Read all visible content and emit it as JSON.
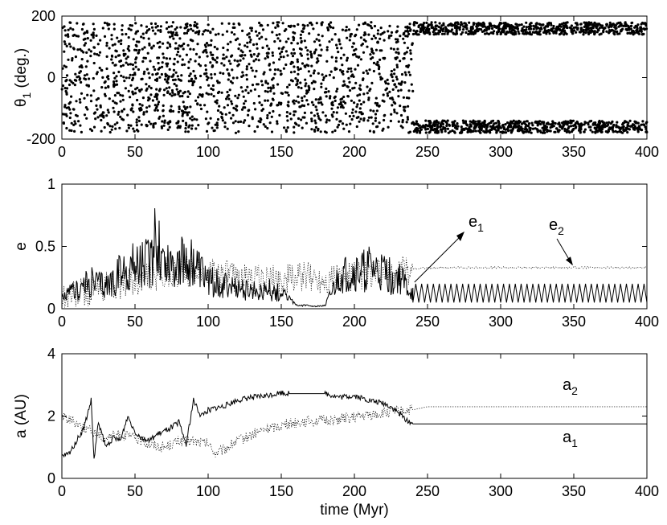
{
  "chart_data": [
    {
      "type": "scatter",
      "ylabel": "θ",
      "ylabel_subscript": "1",
      "ylabel_unit": "(deg.)",
      "xlim": [
        0,
        400
      ],
      "ylim": [
        -200,
        200
      ],
      "xticks": [
        0,
        50,
        100,
        150,
        200,
        250,
        300,
        350,
        400
      ],
      "yticks": [
        -200,
        0,
        200
      ],
      "series": [
        {
          "segments": [
            {
              "x_range": [
                0,
                240
              ],
              "y_range": [
                -180,
                180
              ],
              "distribution": "uniform circulation"
            },
            {
              "x_range": [
                240,
                400
              ],
              "y_range": [
                140,
                180
              ],
              "distribution": "libration band"
            },
            {
              "x_range": [
                240,
                400
              ],
              "y_range": [
                -180,
                -140
              ],
              "distribution": "libration band"
            }
          ]
        }
      ]
    },
    {
      "type": "line",
      "ylabel": "e",
      "xlim": [
        0,
        400
      ],
      "ylim": [
        0,
        1
      ],
      "xticks": [
        0,
        50,
        100,
        150,
        200,
        250,
        300,
        350,
        400
      ],
      "yticks": [
        0,
        0.5,
        1
      ],
      "series": [
        {
          "name": "e1",
          "style": "solid",
          "x": [
            0,
            10,
            20,
            30,
            40,
            50,
            60,
            65,
            70,
            80,
            90,
            100,
            110,
            120,
            130,
            140,
            150,
            160,
            170,
            180,
            190,
            200,
            210,
            220,
            230,
            240
          ],
          "y": [
            0.12,
            0.25,
            0.35,
            0.3,
            0.45,
            0.55,
            0.6,
            0.92,
            0.6,
            0.62,
            0.55,
            0.35,
            0.3,
            0.25,
            0.22,
            0.25,
            0.2,
            0.04,
            0.03,
            0.03,
            0.4,
            0.45,
            0.5,
            0.45,
            0.4,
            0.18
          ],
          "oscillation_after": {
            "x_range": [
              240,
              400
            ],
            "min": 0.05,
            "max": 0.2,
            "period": 4
          }
        },
        {
          "name": "e2",
          "style": "dotted",
          "x": [
            0,
            20,
            40,
            60,
            80,
            100,
            120,
            140,
            150,
            160,
            170,
            180,
            200,
            220,
            240,
            260,
            300,
            350,
            400
          ],
          "y": [
            0.1,
            0.15,
            0.2,
            0.25,
            0.3,
            0.3,
            0.25,
            0.22,
            0.23,
            0.25,
            0.25,
            0.24,
            0.26,
            0.28,
            0.32,
            0.33,
            0.33,
            0.33,
            0.33
          ]
        }
      ],
      "annotations": [
        {
          "label": "e",
          "subscript": "1",
          "arrow_to": [
            240,
            0.2
          ]
        },
        {
          "label": "e",
          "subscript": "2",
          "arrow_to": [
            350,
            0.34
          ]
        }
      ]
    },
    {
      "type": "line",
      "xlabel": "time (Myr)",
      "ylabel": "a (AU)",
      "xlim": [
        0,
        400
      ],
      "ylim": [
        0,
        4
      ],
      "xticks": [
        0,
        50,
        100,
        150,
        200,
        250,
        300,
        350,
        400
      ],
      "yticks": [
        0,
        2,
        4
      ],
      "series": [
        {
          "name": "a1",
          "style": "solid",
          "x": [
            0,
            5,
            10,
            15,
            20,
            22,
            25,
            30,
            35,
            40,
            45,
            50,
            55,
            60,
            65,
            70,
            80,
            85,
            90,
            95,
            100,
            110,
            120,
            130,
            140,
            150,
            155,
            170,
            180,
            190,
            200,
            210,
            220,
            225,
            230,
            235,
            240,
            250,
            300,
            350,
            400
          ],
          "y": [
            0.7,
            0.8,
            1.2,
            1.6,
            2.5,
            0.6,
            1.8,
            1.0,
            1.3,
            1.2,
            2.0,
            1.5,
            1.3,
            1.2,
            1.4,
            1.5,
            1.8,
            1.1,
            2.5,
            2.0,
            2.2,
            2.3,
            2.5,
            2.6,
            2.65,
            2.75,
            2.72,
            2.72,
            2.72,
            2.6,
            2.65,
            2.5,
            2.4,
            2.3,
            2.1,
            1.9,
            1.75,
            1.75,
            1.75,
            1.75,
            1.75
          ]
        },
        {
          "name": "a2",
          "style": "dotted",
          "x": [
            0,
            10,
            20,
            30,
            40,
            50,
            60,
            70,
            80,
            90,
            100,
            105,
            110,
            120,
            130,
            140,
            150,
            160,
            170,
            180,
            190,
            200,
            220,
            240,
            250,
            300,
            350,
            400
          ],
          "y": [
            2.0,
            1.8,
            1.5,
            1.3,
            1.4,
            1.3,
            1.1,
            1.0,
            1.2,
            1.2,
            1.1,
            0.8,
            0.9,
            1.2,
            1.4,
            1.6,
            1.7,
            1.8,
            1.85,
            1.85,
            1.9,
            1.95,
            2.1,
            2.2,
            2.3,
            2.3,
            2.3,
            2.3
          ]
        }
      ],
      "annotations": [
        {
          "label": "a",
          "subscript": "2"
        },
        {
          "label": "a",
          "subscript": "1"
        }
      ]
    }
  ]
}
